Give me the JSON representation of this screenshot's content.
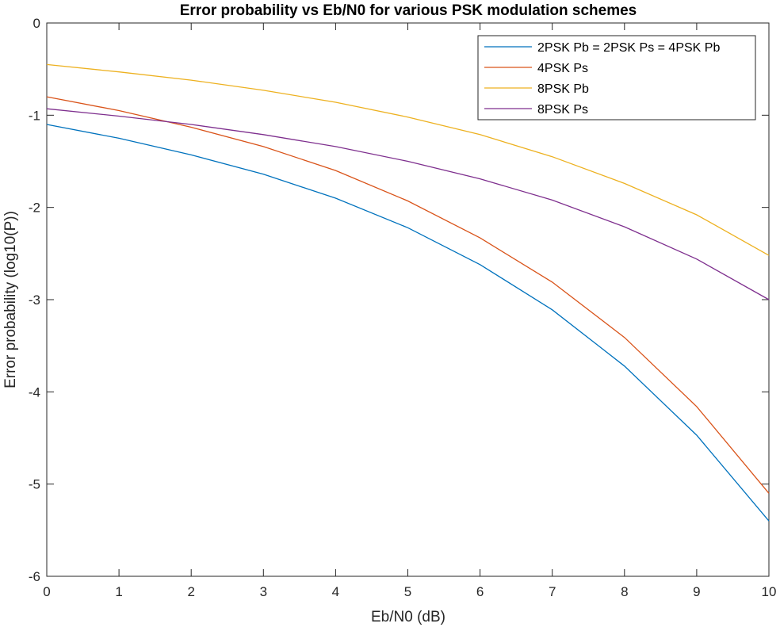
{
  "chart_data": {
    "type": "line",
    "title": "Error probability vs Eb/N0 for various PSK modulation schemes",
    "xlabel": "Eb/N0 (dB)",
    "ylabel": "Error probability (log10(P))",
    "xlim": [
      0,
      10
    ],
    "ylim": [
      -6,
      0
    ],
    "xticks": [
      "0",
      "1",
      "2",
      "3",
      "4",
      "5",
      "6",
      "7",
      "8",
      "9",
      "10"
    ],
    "yticks": [
      "0",
      "-1",
      "-2",
      "-3",
      "-4",
      "-5",
      "-6"
    ],
    "grid": false,
    "legend_position": "top-right",
    "x": [
      0,
      1,
      2,
      3,
      4,
      5,
      6,
      7,
      8,
      9,
      10
    ],
    "series": [
      {
        "name": "2PSK Pb = 2PSK Ps = 4PSK Pb",
        "color": "#0072BD",
        "values": [
          -1.1,
          -1.25,
          -1.43,
          -1.64,
          -1.9,
          -2.22,
          -2.62,
          -3.11,
          -3.72,
          -4.47,
          -5.4
        ]
      },
      {
        "name": "4PSK Ps",
        "color": "#D95319",
        "values": [
          -0.8,
          -0.95,
          -1.13,
          -1.34,
          -1.6,
          -1.93,
          -2.33,
          -2.81,
          -3.41,
          -4.16,
          -5.1
        ]
      },
      {
        "name": "8PSK Pb",
        "color": "#EDB120",
        "values": [
          -0.45,
          -0.53,
          -0.62,
          -0.73,
          -0.86,
          -1.02,
          -1.21,
          -1.45,
          -1.74,
          -2.08,
          -2.52
        ]
      },
      {
        "name": "8PSK Ps",
        "color": "#7E2F8E",
        "values": [
          -0.93,
          -1.01,
          -1.1,
          -1.21,
          -1.34,
          -1.5,
          -1.69,
          -1.92,
          -2.21,
          -2.56,
          -3.0
        ]
      }
    ]
  }
}
